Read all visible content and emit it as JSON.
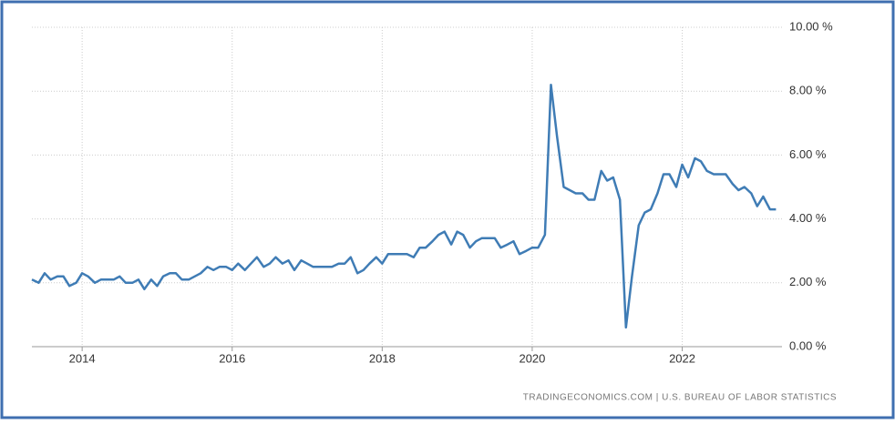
{
  "chart_data": {
    "type": "line",
    "source": "TRADINGECONOMICS.COM  |  U.S. BUREAU OF LABOR STATISTICS",
    "xlim": [
      2013.33,
      2023.33
    ],
    "xticks": [
      2014,
      2016,
      2018,
      2020,
      2022
    ],
    "ylim": [
      0,
      10
    ],
    "yticks": [
      {
        "value": 0,
        "label": "0.00 %"
      },
      {
        "value": 2,
        "label": "2.00 %"
      },
      {
        "value": 4,
        "label": "4.00 %"
      },
      {
        "value": 6,
        "label": "6.00 %"
      },
      {
        "value": 8,
        "label": "8.00 %"
      },
      {
        "value": 10,
        "label": "10.00 %"
      }
    ],
    "grid": true,
    "x": [
      2013.33,
      2013.42,
      2013.5,
      2013.58,
      2013.67,
      2013.75,
      2013.83,
      2013.92,
      2014,
      2014.08,
      2014.17,
      2014.25,
      2014.33,
      2014.42,
      2014.5,
      2014.58,
      2014.67,
      2014.75,
      2014.83,
      2014.92,
      2015,
      2015.08,
      2015.17,
      2015.25,
      2015.33,
      2015.42,
      2015.5,
      2015.58,
      2015.67,
      2015.75,
      2015.83,
      2015.92,
      2016,
      2016.08,
      2016.17,
      2016.25,
      2016.33,
      2016.42,
      2016.5,
      2016.58,
      2016.67,
      2016.75,
      2016.83,
      2016.92,
      2017,
      2017.08,
      2017.17,
      2017.25,
      2017.33,
      2017.42,
      2017.5,
      2017.58,
      2017.67,
      2017.75,
      2017.83,
      2017.92,
      2018,
      2018.08,
      2018.17,
      2018.25,
      2018.33,
      2018.42,
      2018.5,
      2018.58,
      2018.67,
      2018.75,
      2018.83,
      2018.92,
      2019,
      2019.08,
      2019.17,
      2019.25,
      2019.33,
      2019.42,
      2019.5,
      2019.58,
      2019.67,
      2019.75,
      2019.83,
      2019.92,
      2020,
      2020.08,
      2020.17,
      2020.25,
      2020.33,
      2020.42,
      2020.5,
      2020.58,
      2020.67,
      2020.75,
      2020.83,
      2020.92,
      2021,
      2021.08,
      2021.17,
      2021.25,
      2021.33,
      2021.42,
      2021.5,
      2021.58,
      2021.67,
      2021.75,
      2021.83,
      2021.92,
      2022,
      2022.08,
      2022.17,
      2022.25,
      2022.33,
      2022.42,
      2022.5,
      2022.58,
      2022.67,
      2022.75,
      2022.83,
      2022.92,
      2023,
      2023.08,
      2023.17,
      2023.25
    ],
    "series": [
      {
        "color": "#3f7cb5",
        "values": [
          2.1,
          2.0,
          2.3,
          2.1,
          2.2,
          2.2,
          1.9,
          2.0,
          2.3,
          2.2,
          2.0,
          2.1,
          2.1,
          2.1,
          2.2,
          2.0,
          2.0,
          2.1,
          1.8,
          2.1,
          1.9,
          2.2,
          2.3,
          2.3,
          2.1,
          2.1,
          2.2,
          2.3,
          2.5,
          2.4,
          2.5,
          2.5,
          2.4,
          2.6,
          2.4,
          2.6,
          2.8,
          2.5,
          2.6,
          2.8,
          2.6,
          2.7,
          2.4,
          2.7,
          2.6,
          2.5,
          2.5,
          2.5,
          2.5,
          2.6,
          2.6,
          2.8,
          2.3,
          2.4,
          2.6,
          2.8,
          2.6,
          2.9,
          2.9,
          2.9,
          2.9,
          2.8,
          3.1,
          3.1,
          3.3,
          3.5,
          3.6,
          3.2,
          3.6,
          3.5,
          3.1,
          3.3,
          3.4,
          3.4,
          3.4,
          3.1,
          3.2,
          3.3,
          2.9,
          3.0,
          3.1,
          3.1,
          3.5,
          8.2,
          6.6,
          5.0,
          4.9,
          4.8,
          4.8,
          4.6,
          4.6,
          5.5,
          5.2,
          5.3,
          4.6,
          0.6,
          2.2,
          3.8,
          4.2,
          4.3,
          4.8,
          5.4,
          5.4,
          5.0,
          5.7,
          5.3,
          5.9,
          5.8,
          5.5,
          5.4,
          5.4,
          5.4,
          5.1,
          4.9,
          5.0,
          4.8,
          4.4,
          4.7,
          4.3,
          4.3
        ]
      }
    ]
  }
}
